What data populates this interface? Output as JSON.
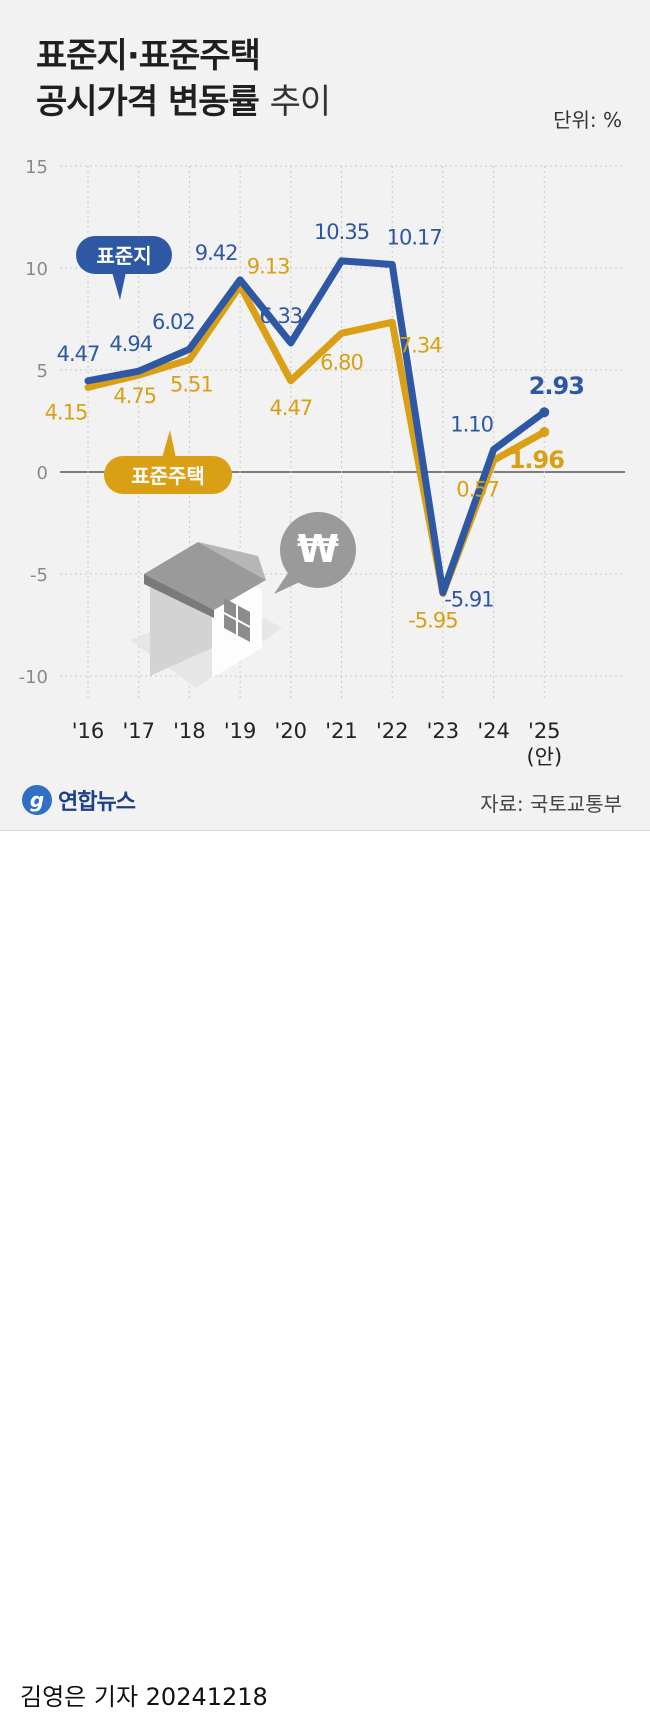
{
  "header": {
    "title_line1": "표준지·표준주택",
    "title_line2_bold": "공시가격 변동률",
    "title_line2_light": "추이",
    "unit": "단위: %"
  },
  "footer": {
    "source": "자료: 국토교통부",
    "agency": "연합뉴스",
    "byline": "김영은 기자  20241218"
  },
  "legend": {
    "land": "표준지",
    "house": "표준주택"
  },
  "colors": {
    "land": "#2e58a4",
    "house": "#d9a015",
    "grid": "#c8c8c8",
    "zero": "#555555"
  },
  "chart_data": {
    "type": "line",
    "categories": [
      "'16",
      "'17",
      "'18",
      "'19",
      "'20",
      "'21",
      "'22",
      "'23",
      "'24",
      "'25\n(안)"
    ],
    "ylim": [
      -10,
      15
    ],
    "yticks": [
      15,
      10,
      5,
      0,
      -5,
      -10
    ],
    "series": [
      {
        "name": "표준지",
        "values": [
          4.47,
          4.94,
          6.02,
          9.42,
          6.33,
          10.35,
          10.17,
          -5.91,
          1.1,
          2.93
        ],
        "labels": [
          "4.47",
          "4.94",
          "6.02",
          "9.42",
          "6.33",
          "10.35",
          "10.17",
          "-5.91",
          "1.10",
          "2.93"
        ]
      },
      {
        "name": "표준주택",
        "values": [
          4.15,
          4.75,
          5.51,
          9.13,
          4.47,
          6.8,
          7.34,
          -5.95,
          0.57,
          1.96
        ],
        "labels": [
          "4.15",
          "4.75",
          "5.51",
          "9.13",
          "4.47",
          "6.80",
          "7.34",
          "-5.95",
          "0.57",
          "1.96"
        ]
      }
    ]
  }
}
